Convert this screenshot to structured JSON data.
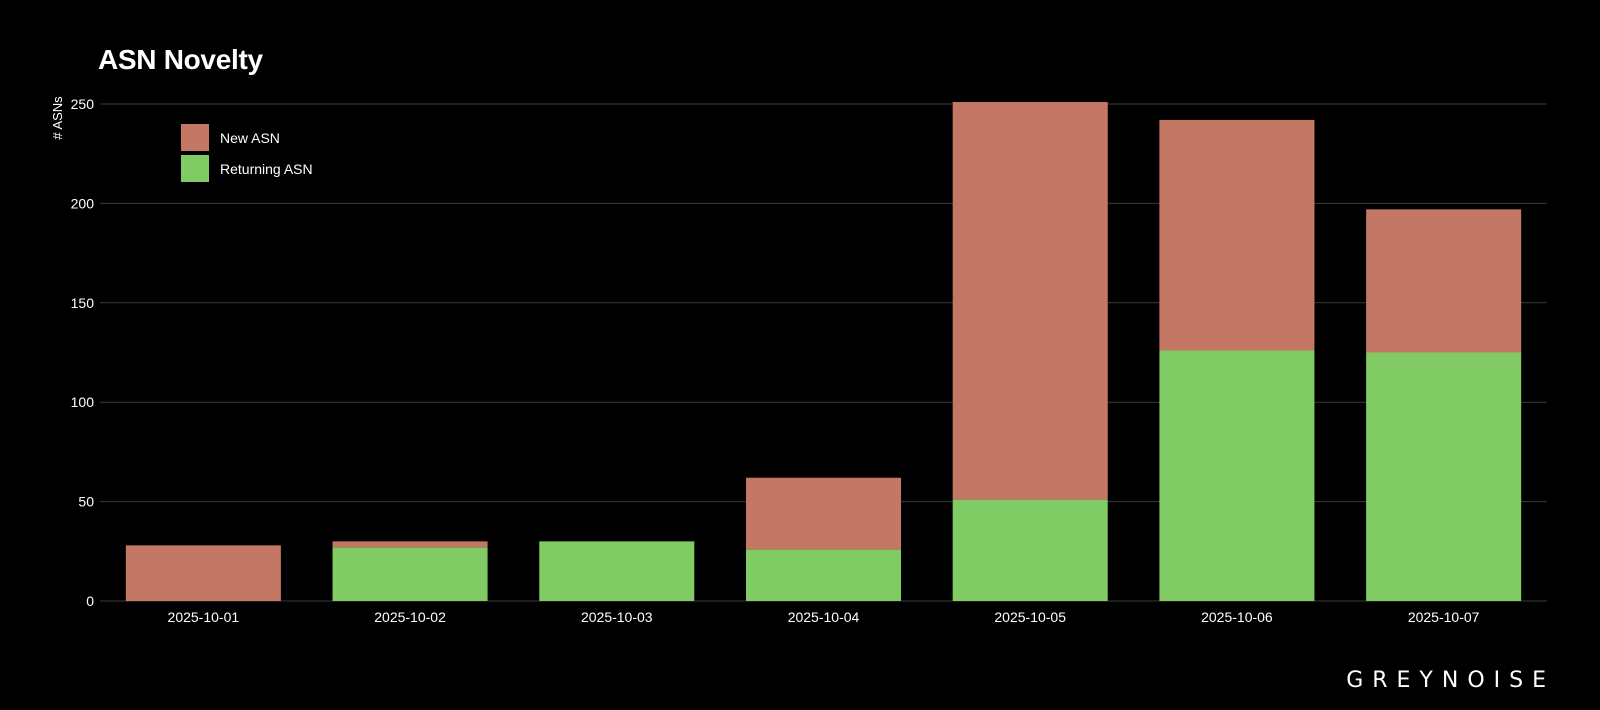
{
  "title": "ASN Novelty",
  "brand": "GREYNOISE",
  "chart_data": {
    "type": "bar",
    "stacked": true,
    "title": "ASN Novelty",
    "xlabel": "",
    "ylabel": "# ASNs",
    "ylim": [
      0,
      250
    ],
    "yticks": [
      0,
      50,
      100,
      150,
      200,
      250
    ],
    "grid": true,
    "legend_position": "top-left",
    "categories": [
      "2025-10-01",
      "2025-10-02",
      "2025-10-03",
      "2025-10-04",
      "2025-10-05",
      "2025-10-06",
      "2025-10-07"
    ],
    "series": [
      {
        "name": "Returning ASN",
        "color": "#81cb65",
        "values": [
          0,
          27,
          30,
          26,
          51,
          126,
          125
        ]
      },
      {
        "name": "New ASN",
        "color": "#c57766",
        "values": [
          28,
          3,
          0,
          36,
          200,
          116,
          72
        ]
      }
    ],
    "legend": [
      {
        "name": "New ASN",
        "color": "#c57766"
      },
      {
        "name": "Returning ASN",
        "color": "#81cb65"
      }
    ],
    "colors": {
      "background": "#000000",
      "grid": "#3a3a3a",
      "text": "#ffffff"
    }
  }
}
